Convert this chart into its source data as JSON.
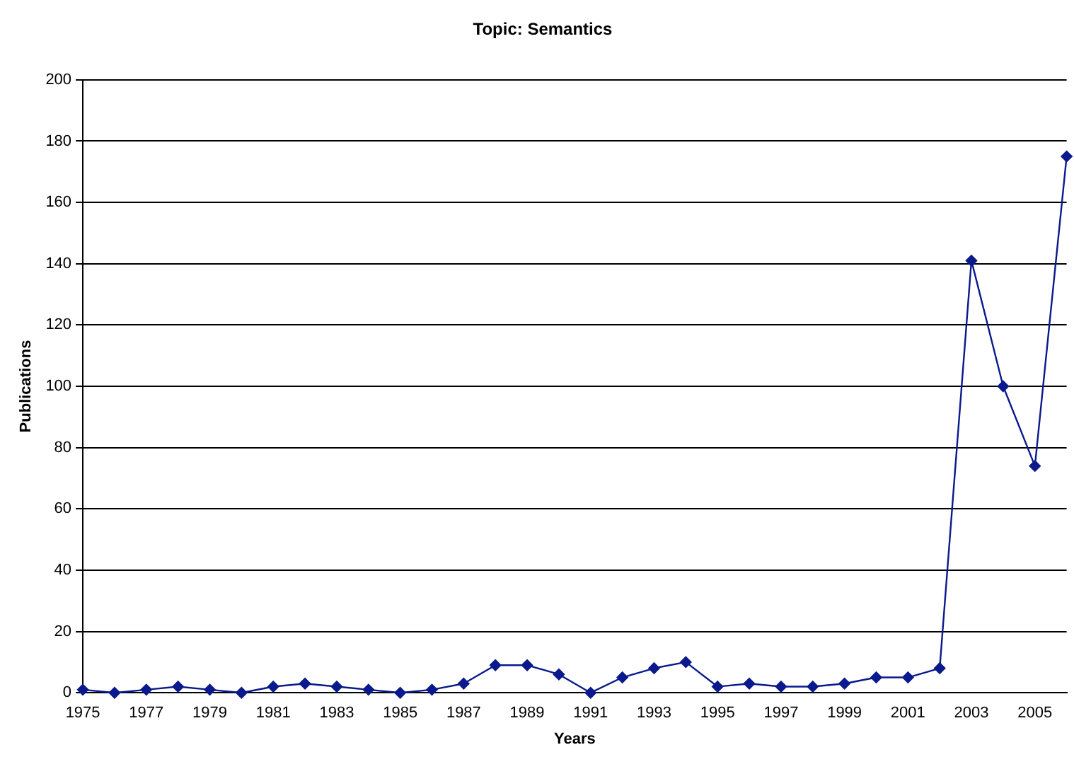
{
  "chart_data": {
    "type": "line",
    "title": "Topic: Semantics",
    "xlabel": "Years",
    "ylabel": "Publications",
    "categories": [
      "1975",
      null,
      "1977",
      null,
      "1979",
      null,
      "1981",
      null,
      "1983",
      null,
      "1985",
      null,
      "1987",
      null,
      "1989",
      null,
      "1991",
      null,
      "1993",
      null,
      "1995",
      null,
      "1997",
      null,
      "1999",
      null,
      "2001",
      null,
      "2003",
      null,
      "2005",
      null
    ],
    "series": [
      {
        "color": "#0a1a8c",
        "values": [
          1,
          0,
          1,
          2,
          1,
          0,
          2,
          3,
          2,
          1,
          0,
          1,
          3,
          9,
          9,
          6,
          0,
          5,
          8,
          10,
          2,
          3,
          2,
          2,
          3,
          5,
          5,
          8,
          141,
          100,
          74,
          175
        ]
      }
    ],
    "ylim": [
      0,
      200
    ],
    "yticks": [
      0,
      20,
      40,
      60,
      80,
      100,
      120,
      140,
      160,
      180,
      200
    ],
    "grid": "y",
    "legend": false,
    "marker": "diamond",
    "line_style": "solid"
  }
}
